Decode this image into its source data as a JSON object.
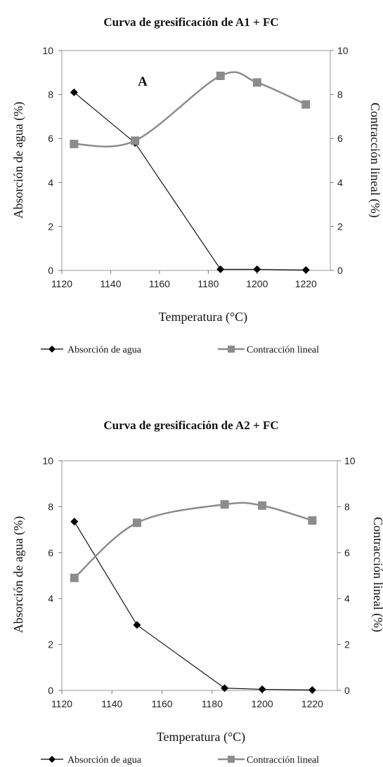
{
  "chart_data": [
    {
      "type": "line",
      "title": "Curva de gresificación de A1 + FC",
      "xlabel": "Temperatura (°C)",
      "ylabel": "Absorción de agua (%)",
      "y2label": "Contracción lineal (%)",
      "xlim": [
        1120,
        1230
      ],
      "xticks": [
        1120,
        1140,
        1160,
        1180,
        1200,
        1220
      ],
      "ylim": [
        0,
        10
      ],
      "yticks": [
        0,
        2,
        4,
        6,
        8,
        10
      ],
      "y2lim": [
        0,
        10
      ],
      "y2ticks": [
        0,
        2,
        4,
        6,
        8,
        10
      ],
      "grid": false,
      "legend_position": "bottom",
      "annotation": "A",
      "series": [
        {
          "name": "Absorción de agua",
          "axis": "left",
          "marker": "diamond",
          "color": "#000000",
          "smooth": false,
          "x": [
            1125,
            1150,
            1185,
            1200,
            1220
          ],
          "y": [
            8.1,
            5.8,
            0.05,
            0.05,
            0.02
          ]
        },
        {
          "name": "Contracción lineal",
          "axis": "right",
          "marker": "square",
          "color": "#8c8c8c",
          "smooth": true,
          "x": [
            1125,
            1150,
            1185,
            1200,
            1220
          ],
          "y": [
            5.75,
            5.9,
            8.85,
            8.55,
            7.55
          ]
        }
      ]
    },
    {
      "type": "line",
      "title": "Curva de gresificación de A2 + FC",
      "xlabel": "Temperatura (°C)",
      "ylabel": "Absorción de agua (%)",
      "y2label": "Contracción lineal (%)",
      "xlim": [
        1120,
        1230
      ],
      "xticks": [
        1120,
        1140,
        1160,
        1180,
        1200,
        1220
      ],
      "ylim": [
        0,
        10
      ],
      "yticks": [
        0,
        2,
        4,
        6,
        8,
        10
      ],
      "y2lim": [
        0,
        10
      ],
      "y2ticks": [
        0,
        2,
        4,
        6,
        8,
        10
      ],
      "grid": false,
      "legend_position": "bottom",
      "annotation": "",
      "series": [
        {
          "name": "Absorción de agua",
          "axis": "left",
          "marker": "diamond",
          "color": "#000000",
          "smooth": false,
          "x": [
            1125,
            1150,
            1185,
            1200,
            1220
          ],
          "y": [
            7.35,
            2.85,
            0.1,
            0.05,
            0.02
          ]
        },
        {
          "name": "Contracción lineal",
          "axis": "right",
          "marker": "square",
          "color": "#8c8c8c",
          "smooth": true,
          "x": [
            1125,
            1150,
            1185,
            1200,
            1220
          ],
          "y": [
            4.9,
            7.3,
            8.1,
            8.05,
            7.4
          ]
        }
      ]
    }
  ]
}
